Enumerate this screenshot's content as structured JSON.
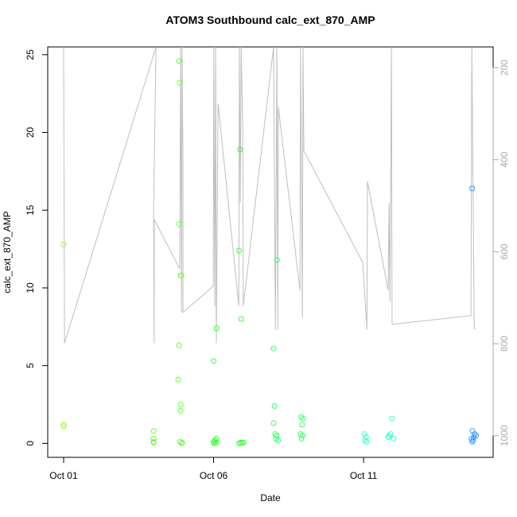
{
  "chart_data": {
    "type": "scatter",
    "title": "ATOM3 Southbound calc_ext_870_AMP",
    "x_label": "Date",
    "y_label": "calc_ext_870_AMP",
    "xlim": [
      0.47,
      15.32
    ],
    "xticks": [
      {
        "value": 1,
        "label": "Oct 01"
      },
      {
        "value": 6,
        "label": "Oct 06"
      },
      {
        "value": 11,
        "label": "Oct 11"
      }
    ],
    "ylim": [
      -0.9,
      25.5
    ],
    "yticks": [
      0,
      5,
      10,
      15,
      20,
      25
    ],
    "y2lim": [
      1047,
      155
    ],
    "y2ticks": [
      200,
      400,
      600,
      800,
      1000
    ],
    "series": [
      {
        "type": "line",
        "axis": "y2",
        "color": "#bebebe",
        "x": [
          1.0,
          1.03,
          4.08,
          4.0,
          4.02,
          4.02,
          4.87,
          4.9,
          4.93,
          4.95,
          4.98,
          4.98,
          5.99,
          6.01,
          6.04,
          6.07,
          6.09,
          6.15,
          6.84,
          6.86,
          6.89,
          6.92,
          6.97,
          6.99,
          8.0,
          8.06,
          8.11,
          8.14,
          8.16,
          8.88,
          8.9,
          8.96,
          8.98,
          9.01,
          10.97,
          11.08,
          11.11,
          11.13,
          11.82,
          11.85,
          11.88,
          11.9,
          11.93,
          11.95,
          14.58,
          14.61,
          14.69,
          14.74
        ],
        "values": [
          155,
          799,
          155,
          507,
          799,
          530,
          637,
          155,
          732,
          155,
          412,
          732,
          675,
          155,
          718,
          155,
          799,
          278,
          718,
          155,
          494,
          155,
          330,
          718,
          155,
          770,
          155,
          770,
          286,
          684,
          155,
          744,
          155,
          381,
          623,
          735,
          770,
          447,
          684,
          494,
          709,
          494,
          155,
          758,
          739,
          155,
          767,
          767
        ]
      },
      {
        "color": "#99ff33",
        "x": [
          1.0,
          1.0,
          1.0
        ],
        "values": [
          12.8,
          1.2,
          1.1
        ]
      },
      {
        "color": "#66ff33",
        "x": [
          4.0,
          4.0,
          4.0,
          4.0,
          4.85,
          4.87,
          4.85,
          4.9,
          4.92,
          4.85,
          4.82,
          4.9,
          4.9,
          4.87,
          4.95,
          4.93
        ],
        "values": [
          0.8,
          0.3,
          0.1,
          0.05,
          24.6,
          23.2,
          14.1,
          10.8,
          10.8,
          6.3,
          4.1,
          2.5,
          2.1,
          0.1,
          0.05,
          0.0
        ]
      },
      {
        "color": "#33ff33",
        "x": [
          6.1,
          6.0,
          6.1,
          6.05,
          6.0,
          6.08,
          6.02,
          6.88,
          6.85,
          6.92,
          6.9,
          6.95,
          7.0,
          6.85
        ],
        "values": [
          7.4,
          5.3,
          0.3,
          0.2,
          0.1,
          0.05,
          0.0,
          18.9,
          12.4,
          8.0,
          0.05,
          0.05,
          0.05,
          0.0
        ]
      },
      {
        "color": "#33ff66",
        "x": [
          8.12,
          8.0,
          8.03,
          8.0,
          8.05,
          8.1,
          8.08,
          8.15,
          8.92,
          8.98,
          8.95,
          8.9,
          8.97,
          8.93
        ],
        "values": [
          11.8,
          6.1,
          2.4,
          1.3,
          0.6,
          0.5,
          0.3,
          0.2,
          1.7,
          1.6,
          1.2,
          0.6,
          0.5,
          0.3
        ]
      },
      {
        "color": "#33ffcc",
        "x": [
          11.03,
          11.08,
          11.05,
          11.1,
          11.95,
          11.9,
          11.85,
          11.83,
          12.0
        ],
        "values": [
          0.6,
          0.4,
          0.2,
          0.1,
          1.6,
          0.6,
          0.5,
          0.4,
          0.3
        ]
      },
      {
        "color": "#3399ff",
        "x": [
          14.62,
          14.63,
          14.7,
          14.75,
          14.68,
          14.6,
          14.65,
          14.62
        ],
        "values": [
          16.4,
          0.8,
          0.6,
          0.5,
          0.4,
          0.3,
          0.2,
          0.1
        ]
      }
    ]
  }
}
